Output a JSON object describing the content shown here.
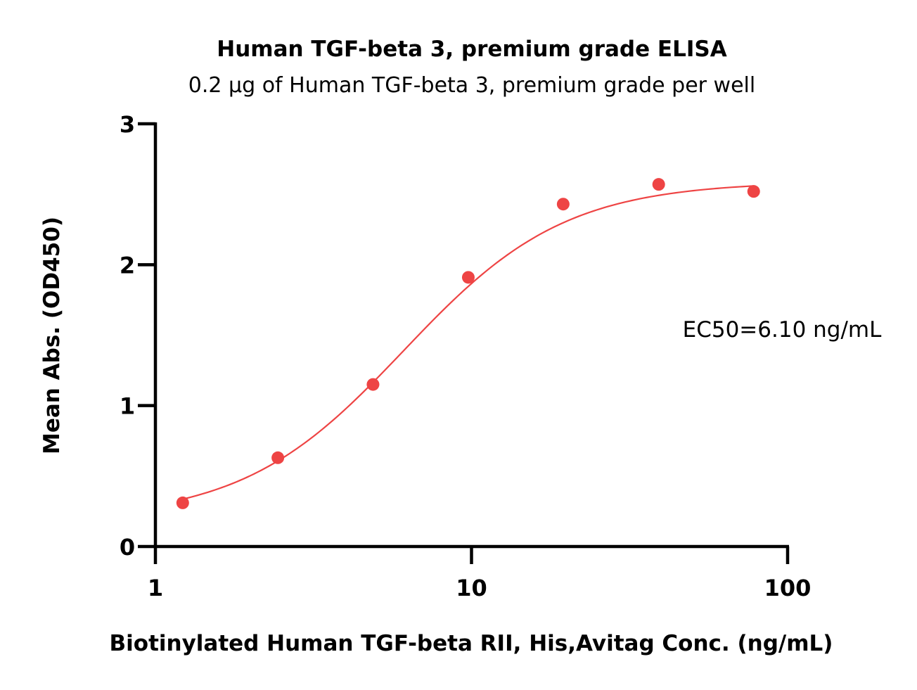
{
  "chart_data": {
    "type": "scatter",
    "title": "Human TGF-beta 3, premium grade ELISA",
    "subtitle": "0.2 μg of Human TGF-beta 3, premium grade per well",
    "xlabel": "Biotinylated Human TGF-beta RII, His,Avitag Conc. (ng/mL)",
    "ylabel": "Mean Abs. (OD450)",
    "x_scale": "log",
    "xlim": [
      1,
      100
    ],
    "ylim": [
      0,
      3
    ],
    "x_ticks": [
      {
        "value": 1,
        "label": "1"
      },
      {
        "value": 10,
        "label": "10"
      },
      {
        "value": 100,
        "label": "100"
      }
    ],
    "y_ticks": [
      {
        "value": 0,
        "label": "0"
      },
      {
        "value": 1,
        "label": "1"
      },
      {
        "value": 2,
        "label": "2"
      },
      {
        "value": 3,
        "label": "3"
      }
    ],
    "grid": false,
    "legend": "none",
    "series": [
      {
        "color": "#EE4444",
        "points": [
          {
            "x": 1.22,
            "y": 0.31
          },
          {
            "x": 2.44,
            "y": 0.63
          },
          {
            "x": 4.88,
            "y": 1.15
          },
          {
            "x": 9.77,
            "y": 1.91
          },
          {
            "x": 19.5,
            "y": 2.43
          },
          {
            "x": 39.1,
            "y": 2.57
          },
          {
            "x": 78.1,
            "y": 2.52
          }
        ],
        "fit": {
          "model": "4PL",
          "bottom": 0.19,
          "top": 2.59,
          "ec50": 6.1,
          "hill": 1.7,
          "x_range": [
            1.22,
            78.1
          ]
        }
      }
    ],
    "annotations": [
      {
        "text": "EC50=6.10 ng/mL"
      }
    ]
  }
}
